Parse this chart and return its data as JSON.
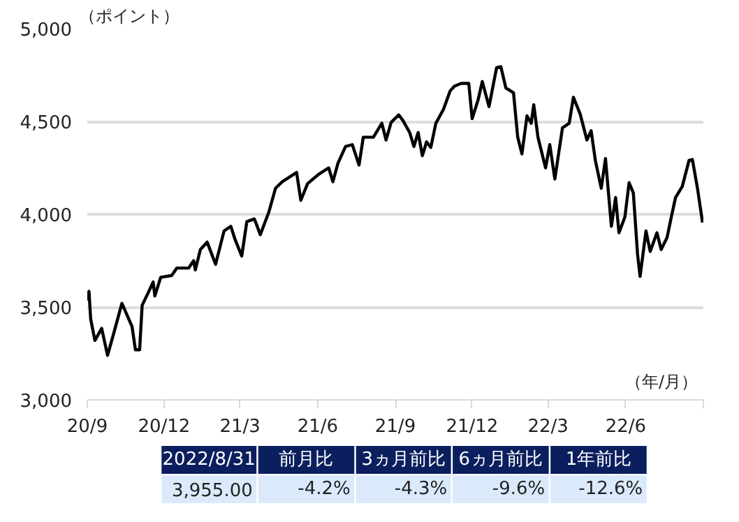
{
  "chart_data": {
    "type": "line",
    "ylabel": "（ポイント）",
    "xlabel": "（年/月）",
    "x": [
      "2020-09-01",
      "2020-09-03",
      "2020-09-05",
      "2020-09-10",
      "2020-09-18",
      "2020-09-25",
      "2020-10-03",
      "2020-10-12",
      "2020-10-24",
      "2020-10-28",
      "2020-11-02",
      "2020-11-05",
      "2020-11-13",
      "2020-11-18",
      "2020-11-20",
      "2020-11-27",
      "2020-12-10",
      "2020-12-16",
      "2020-12-30",
      "2021-01-05",
      "2021-01-07",
      "2021-01-13",
      "2021-01-21",
      "2021-01-31",
      "2021-02-10",
      "2021-02-18",
      "2021-02-23",
      "2021-03-03",
      "2021-03-09",
      "2021-03-18",
      "2021-03-25",
      "2021-04-04",
      "2021-04-12",
      "2021-04-20",
      "2021-05-07",
      "2021-05-12",
      "2021-05-20",
      "2021-06-02",
      "2021-06-14",
      "2021-06-19",
      "2021-06-25",
      "2021-07-04",
      "2021-07-12",
      "2021-07-20",
      "2021-07-25",
      "2021-08-06",
      "2021-08-16",
      "2021-08-21",
      "2021-08-27",
      "2021-09-05",
      "2021-09-10",
      "2021-09-18",
      "2021-09-23",
      "2021-09-28",
      "2021-10-03",
      "2021-10-08",
      "2021-10-13",
      "2021-10-19",
      "2021-10-28",
      "2021-11-05",
      "2021-11-10",
      "2021-11-18",
      "2021-11-27",
      "2021-12-01",
      "2021-12-08",
      "2021-12-13",
      "2021-12-21",
      "2021-12-30",
      "2022-01-04",
      "2022-01-10",
      "2022-01-19",
      "2022-01-24",
      "2022-01-29",
      "2022-02-04",
      "2022-02-09",
      "2022-02-12",
      "2022-02-17",
      "2022-02-26",
      "2022-03-03",
      "2022-03-09",
      "2022-03-18",
      "2022-03-26",
      "2022-03-31",
      "2022-04-08",
      "2022-04-16",
      "2022-04-21",
      "2022-04-26",
      "2022-05-03",
      "2022-05-08",
      "2022-05-15",
      "2022-05-20",
      "2022-05-24",
      "2022-05-31",
      "2022-06-05",
      "2022-06-10",
      "2022-06-15",
      "2022-06-18",
      "2022-06-25",
      "2022-06-30",
      "2022-07-08",
      "2022-07-13",
      "2022-07-20",
      "2022-07-25",
      "2022-07-30",
      "2022-08-07",
      "2022-08-15",
      "2022-08-19",
      "2022-08-25",
      "2022-08-31"
    ],
    "series": [
      {
        "color": "#000000",
        "values": [
          3535,
          3585,
          3435,
          3320,
          3385,
          3240,
          3370,
          3520,
          3395,
          3270,
          3270,
          3510,
          3585,
          3635,
          3560,
          3660,
          3670,
          3710,
          3710,
          3750,
          3700,
          3810,
          3850,
          3730,
          3910,
          3935,
          3865,
          3775,
          3960,
          3975,
          3890,
          4010,
          4140,
          4175,
          4225,
          4075,
          4165,
          4215,
          4250,
          4175,
          4275,
          4365,
          4375,
          4265,
          4415,
          4415,
          4490,
          4400,
          4495,
          4535,
          4505,
          4440,
          4365,
          4440,
          4315,
          4390,
          4360,
          4490,
          4565,
          4665,
          4690,
          4705,
          4705,
          4515,
          4615,
          4715,
          4580,
          4790,
          4795,
          4680,
          4655,
          4415,
          4325,
          4530,
          4490,
          4590,
          4415,
          4250,
          4375,
          4190,
          4465,
          4490,
          4630,
          4540,
          4400,
          4450,
          4290,
          4140,
          4300,
          3935,
          4090,
          3900,
          3985,
          4170,
          4115,
          3785,
          3665,
          3910,
          3800,
          3900,
          3810,
          3875,
          3985,
          4090,
          4150,
          4290,
          4295,
          4140,
          3955
        ]
      }
    ],
    "xlim": [
      "2020-09-01",
      "2022-09-01"
    ],
    "xticks": [
      {
        "value": "2020-09-01",
        "label": "20/9"
      },
      {
        "value": "2020-12-01",
        "label": "20/12"
      },
      {
        "value": "2021-03-01",
        "label": "21/3"
      },
      {
        "value": "2021-06-01",
        "label": "21/6"
      },
      {
        "value": "2021-09-01",
        "label": "21/9"
      },
      {
        "value": "2021-12-01",
        "label": "21/12"
      },
      {
        "value": "2022-03-01",
        "label": "22/3"
      },
      {
        "value": "2022-06-01",
        "label": "22/6"
      },
      {
        "value": "2022-09-01",
        "label": null
      }
    ],
    "ylim": [
      3000,
      5000
    ],
    "yticks": [
      {
        "value": 3000,
        "label": "3,000"
      },
      {
        "value": 3500,
        "label": "3,500"
      },
      {
        "value": 4000,
        "label": "4,000"
      },
      {
        "value": 4500,
        "label": "4,500"
      },
      {
        "value": 5000,
        "label": "5,000"
      }
    ],
    "grid": "y",
    "line_style": "solid",
    "annotations": [
      "2022/8/31",
      "前月比",
      "3ヵ月前比",
      "6ヵ月前比",
      "1年前比",
      "3,955.00",
      "-4.2%",
      "-4.3%",
      "-9.6%",
      "-12.6%"
    ]
  }
}
